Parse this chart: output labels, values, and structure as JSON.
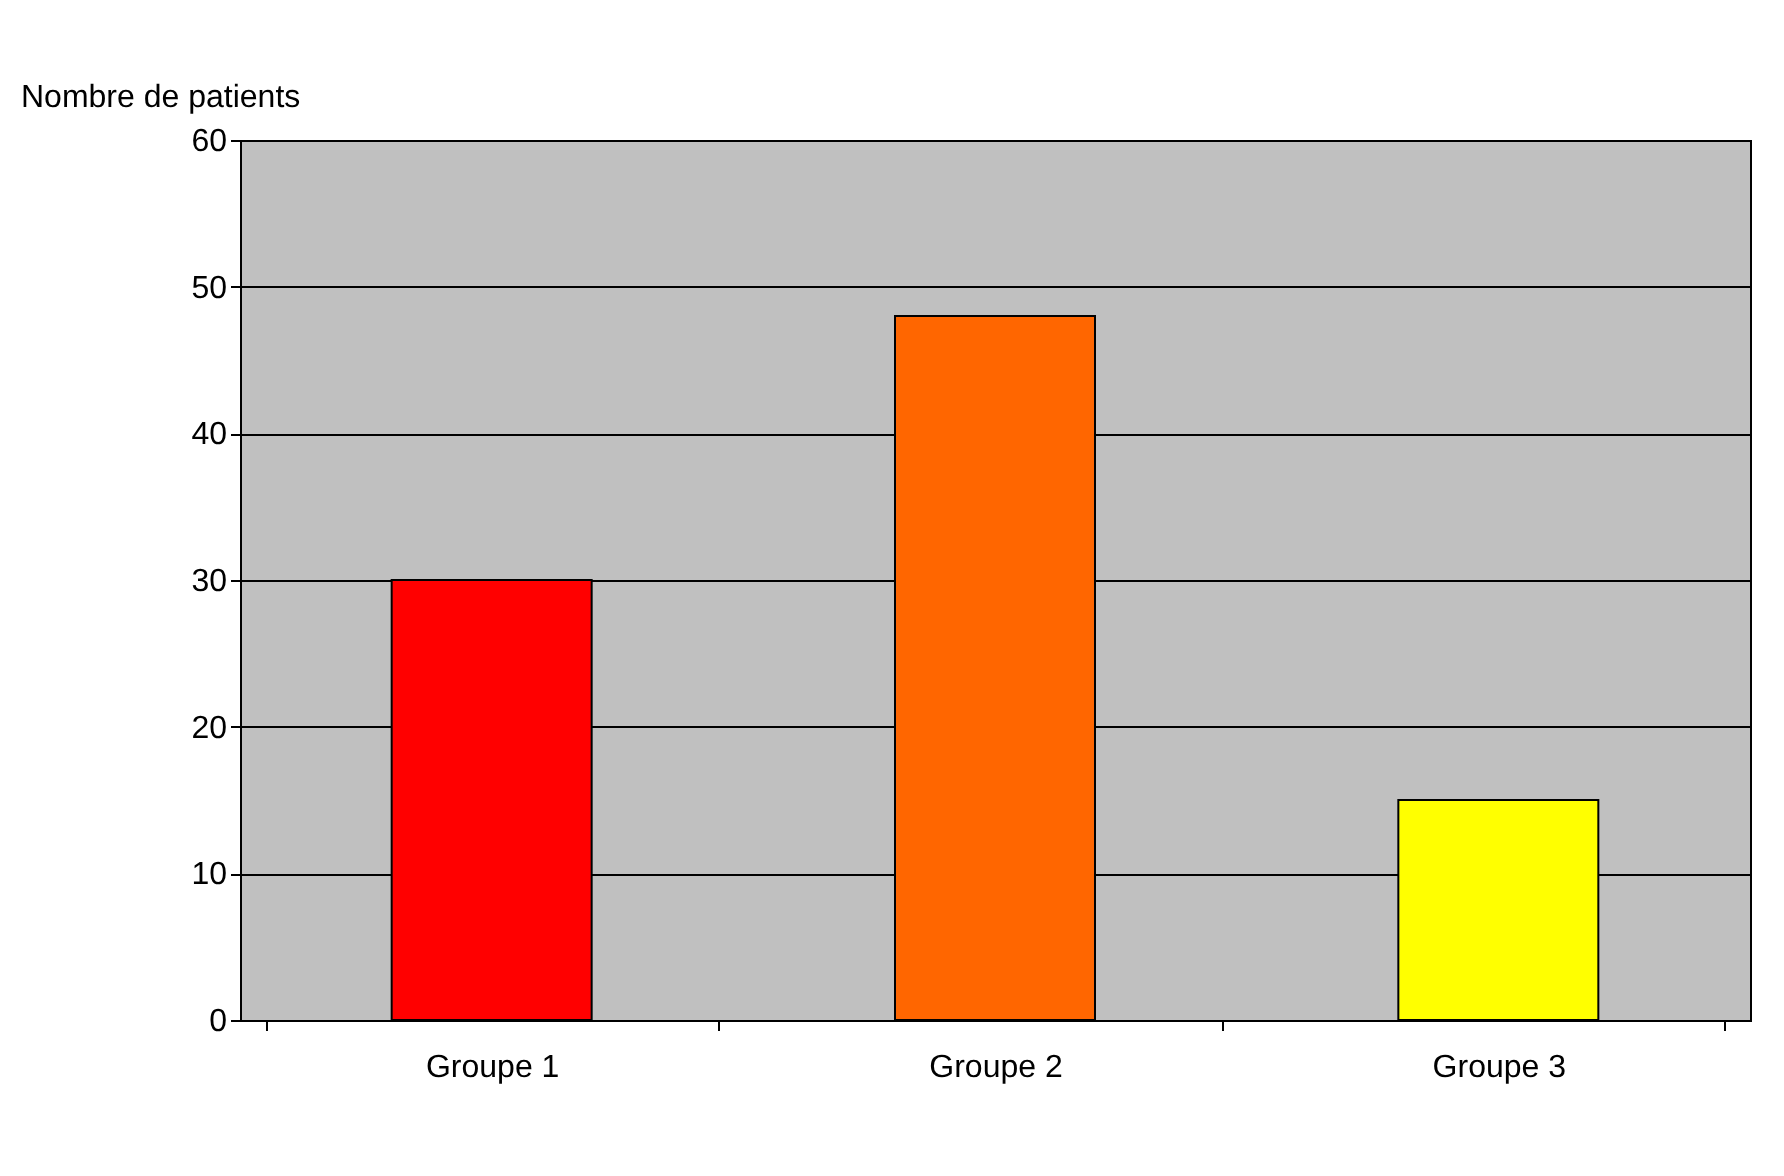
{
  "chart_data": {
    "type": "bar",
    "ylabel": "Nombre de patients",
    "categories": [
      "Groupe 1",
      "Groupe 2",
      "Groupe 3"
    ],
    "values": [
      30,
      48,
      15
    ],
    "colors": [
      "#ff0000",
      "#ff6600",
      "#ffff00"
    ],
    "ylim": [
      0,
      60
    ],
    "yticks": [
      0,
      10,
      20,
      30,
      40,
      50,
      60
    ],
    "grid": "y"
  }
}
